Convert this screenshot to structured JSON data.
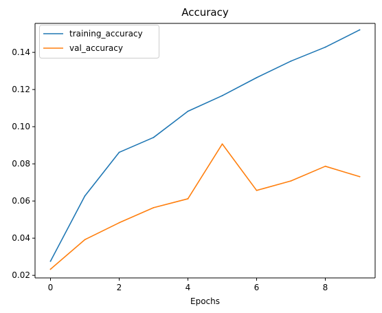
{
  "chart_data": {
    "type": "line",
    "title": "Accuracy",
    "xlabel": "Epochs",
    "ylabel": "",
    "x": [
      0,
      1,
      2,
      3,
      4,
      5,
      6,
      7,
      8,
      9
    ],
    "xlim": [
      -0.45,
      9.45
    ],
    "ylim": [
      0.0186,
      0.1556
    ],
    "xticks": [
      0,
      2,
      4,
      6,
      8
    ],
    "yticks": [
      0.02,
      0.04,
      0.06,
      0.08,
      0.1,
      0.12,
      0.14
    ],
    "xtick_labels": [
      "0",
      "2",
      "4",
      "6",
      "8"
    ],
    "ytick_labels": [
      "0.02",
      "0.04",
      "0.06",
      "0.08",
      "0.10",
      "0.12",
      "0.14"
    ],
    "grid": false,
    "legend_position": "upper-left",
    "series": [
      {
        "name": "training_accuracy",
        "color": "#1f77b4",
        "values": [
          0.0276,
          0.0627,
          0.0862,
          0.0942,
          0.1083,
          0.1167,
          0.1264,
          0.1353,
          0.1428,
          0.1521
        ]
      },
      {
        "name": "val_accuracy",
        "color": "#ff7f0e",
        "values": [
          0.0233,
          0.0392,
          0.0483,
          0.0564,
          0.0612,
          0.0907,
          0.0657,
          0.0708,
          0.0787,
          0.0731
        ]
      }
    ]
  }
}
